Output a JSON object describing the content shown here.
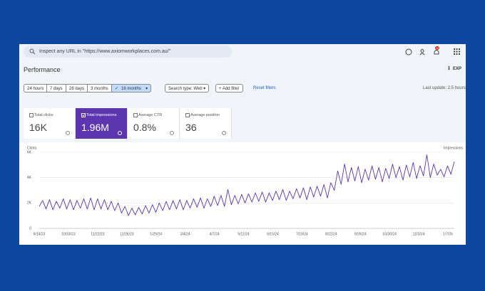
{
  "search": {
    "placeholder": "Inspect any URL in \"https://www.axiomworkplaces.com.au/\""
  },
  "notifications": "12",
  "header": {
    "title": "Performance",
    "export": "EXP"
  },
  "filters": {
    "ranges": [
      "24 hours",
      "7 days",
      "28 days",
      "3 months",
      "16 months"
    ],
    "selected": 4,
    "search_type": "Search type: Web",
    "add_filter": "Add filter",
    "reset": "Reset filters",
    "last_update": "Last update: 2.5 hours"
  },
  "metrics": [
    {
      "label": "Total clicks",
      "value": "16K",
      "checked": false
    },
    {
      "label": "Total impressions",
      "value": "1.96M",
      "checked": true
    },
    {
      "label": "Average CTR",
      "value": "0.8%",
      "checked": false
    },
    {
      "label": "Average position",
      "value": "36",
      "checked": false
    }
  ],
  "chart_data": {
    "type": "line",
    "y_label": "Clicks",
    "y2_label": "Impressions",
    "ylim": [
      0,
      6000
    ],
    "yticks": [
      0,
      {
        "value": 2000,
        "label": "2K"
      },
      {
        "value": 4000,
        "label": "4K"
      },
      {
        "value": 6000,
        "label": "6K"
      }
    ],
    "y2lim": [
      0,
      9000
    ],
    "grid": true,
    "xtick_labels": [
      "9/14/23",
      "10/18/23",
      "11/22/23",
      "12/26/23",
      "1/29/24",
      "3/4/24",
      "4/7/24",
      "5/11/24",
      "6/15/24",
      "7/19/24",
      "8/22/24",
      "9/26/24",
      "10/30/24",
      "12/3/24",
      "1/7/25"
    ],
    "series": [
      {
        "color": "#5e35b1",
        "axis": "y2",
        "values": [
          2600,
          3300,
          2300,
          3400,
          2200,
          3200,
          2400,
          3500,
          2300,
          3400,
          2200,
          3300,
          2400,
          3500,
          2300,
          3600,
          2200,
          3500,
          2300,
          3400,
          2200,
          3200,
          2100,
          3000,
          1800,
          2600,
          1500,
          2400,
          1600,
          2500,
          1700,
          2700,
          1800,
          2800,
          1900,
          3000,
          2100,
          3200,
          2200,
          3300,
          2300,
          3400,
          2200,
          3300,
          2400,
          3500,
          2500,
          3600,
          2400,
          3500,
          2600,
          3800,
          2700,
          3900,
          2600,
          4600,
          2800,
          3900,
          2900,
          4000,
          3000,
          4100,
          3100,
          4200,
          3200,
          4300,
          3100,
          4200,
          3300,
          4400,
          3400,
          4600,
          3300,
          4400,
          3500,
          4700,
          3600,
          4800,
          3400,
          4900,
          3700,
          5000,
          3800,
          5200,
          3600,
          5400,
          4500,
          6800,
          5200,
          7600,
          5500,
          7200,
          5600,
          7300,
          5400,
          7000,
          5700,
          7400,
          5800,
          7200,
          5500,
          7100,
          5900,
          7600,
          6000,
          7300,
          5700,
          7500,
          6100,
          7800,
          5900,
          7400,
          6200,
          8700,
          6000,
          7600,
          6300,
          7000,
          6100,
          7400,
          6400,
          7900
        ]
      }
    ]
  }
}
